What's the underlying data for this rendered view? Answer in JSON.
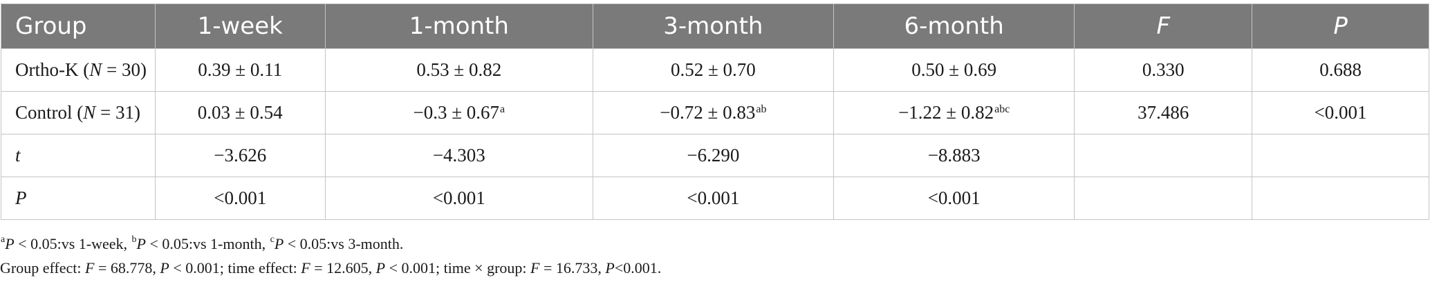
{
  "table": {
    "headers": {
      "group": "Group",
      "week1": "1-week",
      "month1": "1-month",
      "month3": "3-month",
      "month6": "6-month",
      "f": "F",
      "p": "P"
    },
    "rows": [
      {
        "label_main": "Ortho-K (",
        "label_n": "N",
        "label_count": " = 30)",
        "week1": "0.39 ± 0.11",
        "month1": "0.53 ± 0.82",
        "month1_sup": "",
        "month3": "0.52 ± 0.70",
        "month3_sup": "",
        "month6": "0.50 ± 0.69",
        "month6_sup": "",
        "f": "0.330",
        "p": "0.688"
      },
      {
        "label_main": "Control (",
        "label_n": "N",
        "label_count": " = 31)",
        "week1": "0.03 ± 0.54",
        "month1": "−0.3 ± 0.67",
        "month1_sup": "a",
        "month3": "−0.72 ± 0.83",
        "month3_sup": "ab",
        "month6": "−1.22 ± 0.82",
        "month6_sup": "abc",
        "f": "37.486",
        "p": "<0.001"
      },
      {
        "label": "t",
        "week1": "−3.626",
        "month1": "−4.303",
        "month3": "−6.290",
        "month6": "−8.883",
        "f": "",
        "p": ""
      },
      {
        "label": "P",
        "week1": "<0.001",
        "month1": "<0.001",
        "month3": "<0.001",
        "month6": "<0.001",
        "f": "",
        "p": ""
      }
    ]
  },
  "footnotes": {
    "line1": {
      "sup_a": "a",
      "p1": "P",
      "text1": " < 0.05:vs 1-week, ",
      "sup_b": "b",
      "p2": "P",
      "text2": " < 0.05:vs 1-month, ",
      "sup_c": "c",
      "p3": "P",
      "text3": " < 0.05:vs 3-month."
    },
    "line2": {
      "t1": "Group effect: ",
      "f1": "F",
      "t2": " = 68.778, ",
      "p1": "P",
      "t3": " < 0.001; time effect: ",
      "f2": "F",
      "t4": " = 12.605, ",
      "p2": "P",
      "t5": " < 0.001; time × group: ",
      "f3": "F",
      "t6": " = 16.733, ",
      "p3": "P",
      "t7": "<0.001."
    }
  }
}
